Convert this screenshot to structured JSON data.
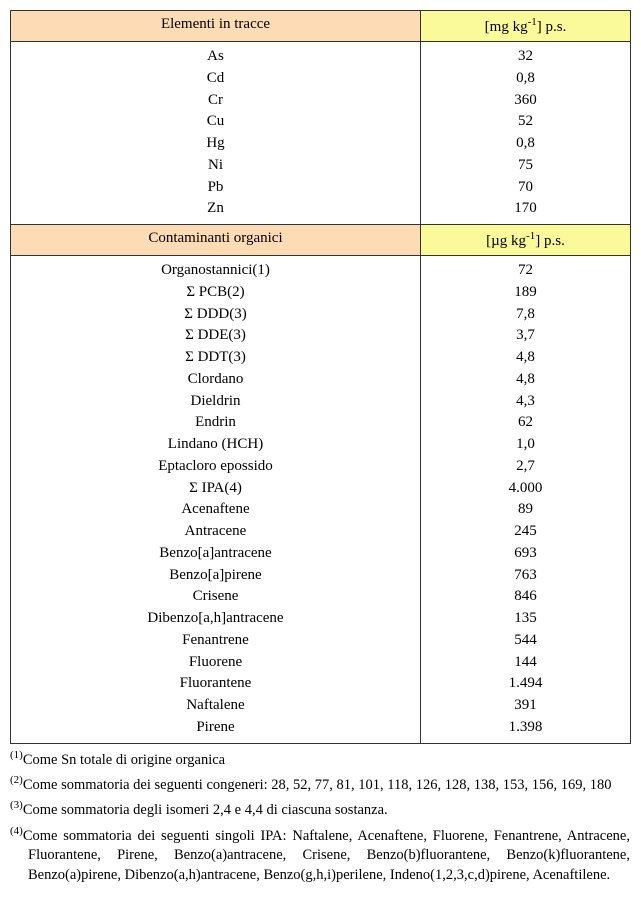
{
  "section1": {
    "header_left": "Elementi in tracce",
    "header_right_prefix": "[mg kg",
    "header_right_sup": "-1",
    "header_right_suffix": "] p.s.",
    "rows": [
      {
        "label": "As",
        "value": "32"
      },
      {
        "label": "Cd",
        "value": "0,8"
      },
      {
        "label": "Cr",
        "value": "360"
      },
      {
        "label": "Cu",
        "value": "52"
      },
      {
        "label": "Hg",
        "value": "0,8"
      },
      {
        "label": "Ni",
        "value": "75"
      },
      {
        "label": "Pb",
        "value": "70"
      },
      {
        "label": "Zn",
        "value": "170"
      }
    ]
  },
  "section2": {
    "header_left": "Contaminanti organici",
    "header_right_prefix": "[µg kg",
    "header_right_sup": "-1",
    "header_right_suffix": "] p.s.",
    "rows": [
      {
        "label": "Organostannici(1)",
        "value": "72"
      },
      {
        "label": "Σ PCB(2)",
        "value": "189"
      },
      {
        "label": "Σ DDD(3)",
        "value": "7,8"
      },
      {
        "label": "Σ DDE(3)",
        "value": "3,7"
      },
      {
        "label": "Σ DDT(3)",
        "value": "4,8"
      },
      {
        "label": "Clordano",
        "value": "4,8"
      },
      {
        "label": "Dieldrin",
        "value": "4,3"
      },
      {
        "label": "Endrin",
        "value": "62"
      },
      {
        "label": "Lindano (HCH)",
        "value": "1,0"
      },
      {
        "label": "Eptacloro epossido",
        "value": "2,7"
      },
      {
        "label": "Σ IPA(4)",
        "value": "4.000"
      },
      {
        "label": "Acenaftene",
        "value": "89"
      },
      {
        "label": "Antracene",
        "value": "245"
      },
      {
        "label": "Benzo[a]antracene",
        "value": "693"
      },
      {
        "label": "Benzo[a]pirene",
        "value": "763"
      },
      {
        "label": "Crisene",
        "value": "846"
      },
      {
        "label": "Dibenzo[a,h]antracene",
        "value": "135"
      },
      {
        "label": "Fenantrene",
        "value": "544"
      },
      {
        "label": "Fluorene",
        "value": "144"
      },
      {
        "label": "Fluorantene",
        "value": "1.494"
      },
      {
        "label": "Naftalene",
        "value": "391"
      },
      {
        "label": "Pirene",
        "value": "1.398"
      }
    ]
  },
  "footnotes": {
    "f1_sup": "(1)",
    "f1": "Come Sn totale di origine organica",
    "f2_sup": "(2)",
    "f2": "Come sommatoria dei seguenti congeneri: 28, 52, 77, 81, 101, 118, 126, 128, 138, 153, 156, 169, 180",
    "f3_sup": "(3)",
    "f3": "Come sommatoria degli isomeri 2,4 e 4,4 di ciascuna sostanza.",
    "f4_sup": "(4)",
    "f4": "Come sommatoria dei seguenti singoli IPA: Naftalene, Acenaftene, Fluorene, Fenantrene, Antracene, Fluorantene, Pirene, Benzo(a)antracene, Crisene, Benzo(b)fluorantene, Benzo(k)fluorantene, Benzo(a)pirene, Dibenzo(a,h)antracene, Benzo(g,h,i)perilene, Indeno(1,2,3,c,d)pirene, Acenaftilene."
  }
}
